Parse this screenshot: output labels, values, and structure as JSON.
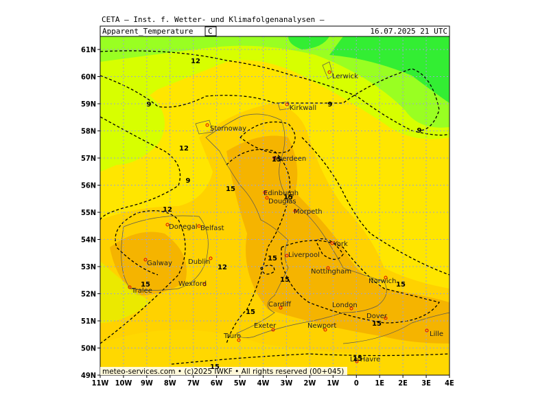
{
  "header": {
    "title": "CETA — Inst. f. Wetter- und Klimafolgenanalysen —",
    "variable": "Apparent_Temperature",
    "unit": "C",
    "valid_time": "16.07.2025 21 UTC"
  },
  "lon_ticks": [
    "11W",
    "10W",
    "9W",
    "8W",
    "7W",
    "6W",
    "5W",
    "4W",
    "3W",
    "2W",
    "1W",
    "0",
    "1E",
    "2E",
    "3E",
    "4E"
  ],
  "lat_ticks": [
    "49N",
    "50N",
    "51N",
    "52N",
    "53N",
    "54N",
    "55N",
    "56N",
    "57N",
    "58N",
    "59N",
    "60N",
    "61N"
  ],
  "cities": [
    "Lerwick",
    "Kirkwall",
    "Stornoway",
    "Aberdeen",
    "Edinburgh",
    "Douglas",
    "Morpeth",
    "Donegal",
    "Belfast",
    "York",
    "Galway",
    "Dublin",
    "Liverpool",
    "Nottingham",
    "Norwich",
    "Wexford",
    "Tralee",
    "Cardiff",
    "London",
    "Dover",
    "Exeter",
    "Newport",
    "Lille",
    "Truro",
    "Le Havre"
  ],
  "contour_labels": [
    12,
    9,
    9,
    9,
    12,
    9,
    15,
    15,
    15,
    12,
    12,
    15,
    15,
    15,
    15,
    15,
    15,
    15,
    15
  ],
  "footer": "meteo-services.com  •  (c)2025 IWKF  •  All rights reserved (00+045)"
}
